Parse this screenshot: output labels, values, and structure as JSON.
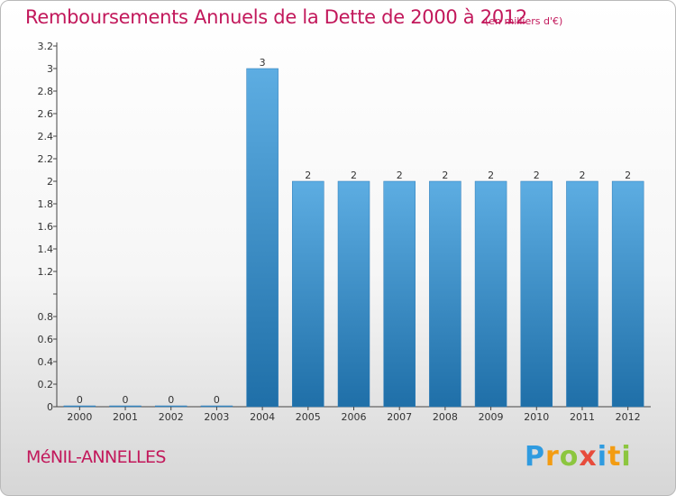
{
  "header": {
    "title": "Remboursements Annuels de la Dette de 2000 à 2012",
    "unit": "(en milliers d'€)"
  },
  "footer": {
    "commune": "MéNIL-ANNELLES",
    "logo": {
      "letters": [
        "P",
        "r",
        "o",
        "x",
        "i",
        "t",
        "i"
      ],
      "colors": [
        "#2f9be0",
        "#f39c12",
        "#8cc63f",
        "#e74c3c",
        "#2f9be0",
        "#f39c12",
        "#8cc63f"
      ]
    }
  },
  "colors": {
    "title": "#c2185b",
    "bar_light": "#5dade2",
    "bar_dark": "#1f6fa8"
  },
  "chart_data": {
    "type": "bar",
    "title": "Remboursements Annuels de la Dette de 2000 à 2012",
    "categories": [
      "2000",
      "2001",
      "2002",
      "2003",
      "2004",
      "2005",
      "2006",
      "2007",
      "2008",
      "2009",
      "2010",
      "2011",
      "2012"
    ],
    "values": [
      0,
      0,
      0,
      0,
      3,
      2,
      2,
      2,
      2,
      2,
      2,
      2,
      2
    ],
    "data_labels": [
      "0",
      "0",
      "0",
      "0",
      "3",
      "2",
      "2",
      "2",
      "2",
      "2",
      "2",
      "2",
      "2"
    ],
    "ylim": [
      0,
      3.2
    ],
    "y_ticks": [
      0,
      0.2,
      0.4,
      0.6,
      0.8,
      1,
      1.2,
      1.4,
      1.6,
      1.8,
      2,
      2.2,
      2.4,
      2.6,
      2.8,
      3,
      3.2
    ],
    "y_tick_labels": [
      "0",
      "0.2",
      "0.4",
      "0.6",
      "0.8",
      "",
      "1.2",
      "1.4",
      "1.6",
      "1.8",
      "2",
      "2.2",
      "2.4",
      "2.6",
      "2.8",
      "3",
      "3.2"
    ],
    "grid": false,
    "legend": "none"
  }
}
